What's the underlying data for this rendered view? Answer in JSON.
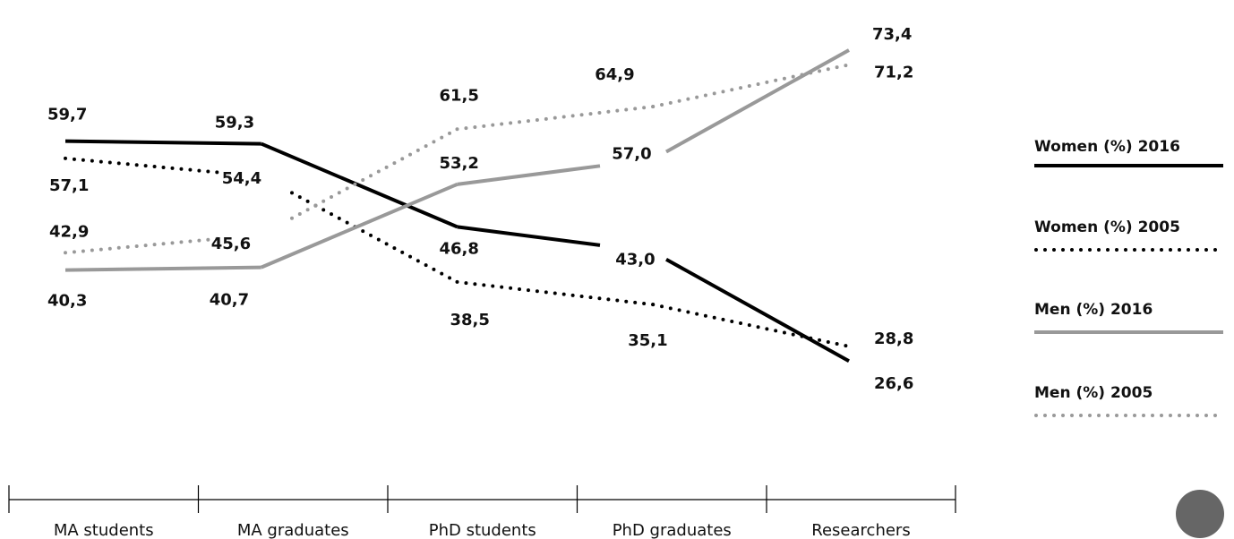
{
  "chart_data": {
    "type": "line",
    "categories": [
      "MA students",
      "MA graduates",
      "PhD students",
      "PhD graduates",
      "Researchers"
    ],
    "series": [
      {
        "name": "Women (%) 2016",
        "values": [
          59.7,
          59.3,
          46.8,
          43.0,
          26.6
        ],
        "labels": [
          "59,7",
          "59,3",
          "46,8",
          "43,0",
          "26,6"
        ],
        "color": "#000000",
        "style": "solid"
      },
      {
        "name": "Women (%) 2005",
        "values": [
          57.1,
          54.4,
          38.5,
          35.1,
          28.8
        ],
        "labels": [
          "57,1",
          "54,4",
          "38,5",
          "35,1",
          "28,8"
        ],
        "color": "#000000",
        "style": "dotted"
      },
      {
        "name": "Men (%) 2016",
        "values": [
          40.3,
          40.7,
          53.2,
          57.0,
          73.4
        ],
        "labels": [
          "40,3",
          "40,7",
          "53,2",
          "57,0",
          "73,4"
        ],
        "color": "#999999",
        "style": "solid"
      },
      {
        "name": "Men (%) 2005",
        "values": [
          42.9,
          45.6,
          61.5,
          64.9,
          71.2
        ],
        "labels": [
          "42,9",
          "45,6",
          "61,5",
          "64,9",
          "71,2"
        ],
        "color": "#999999",
        "style": "dotted"
      }
    ],
    "legend_position": "right",
    "grid": false,
    "colors": {
      "accent_circle": "#666666"
    }
  }
}
